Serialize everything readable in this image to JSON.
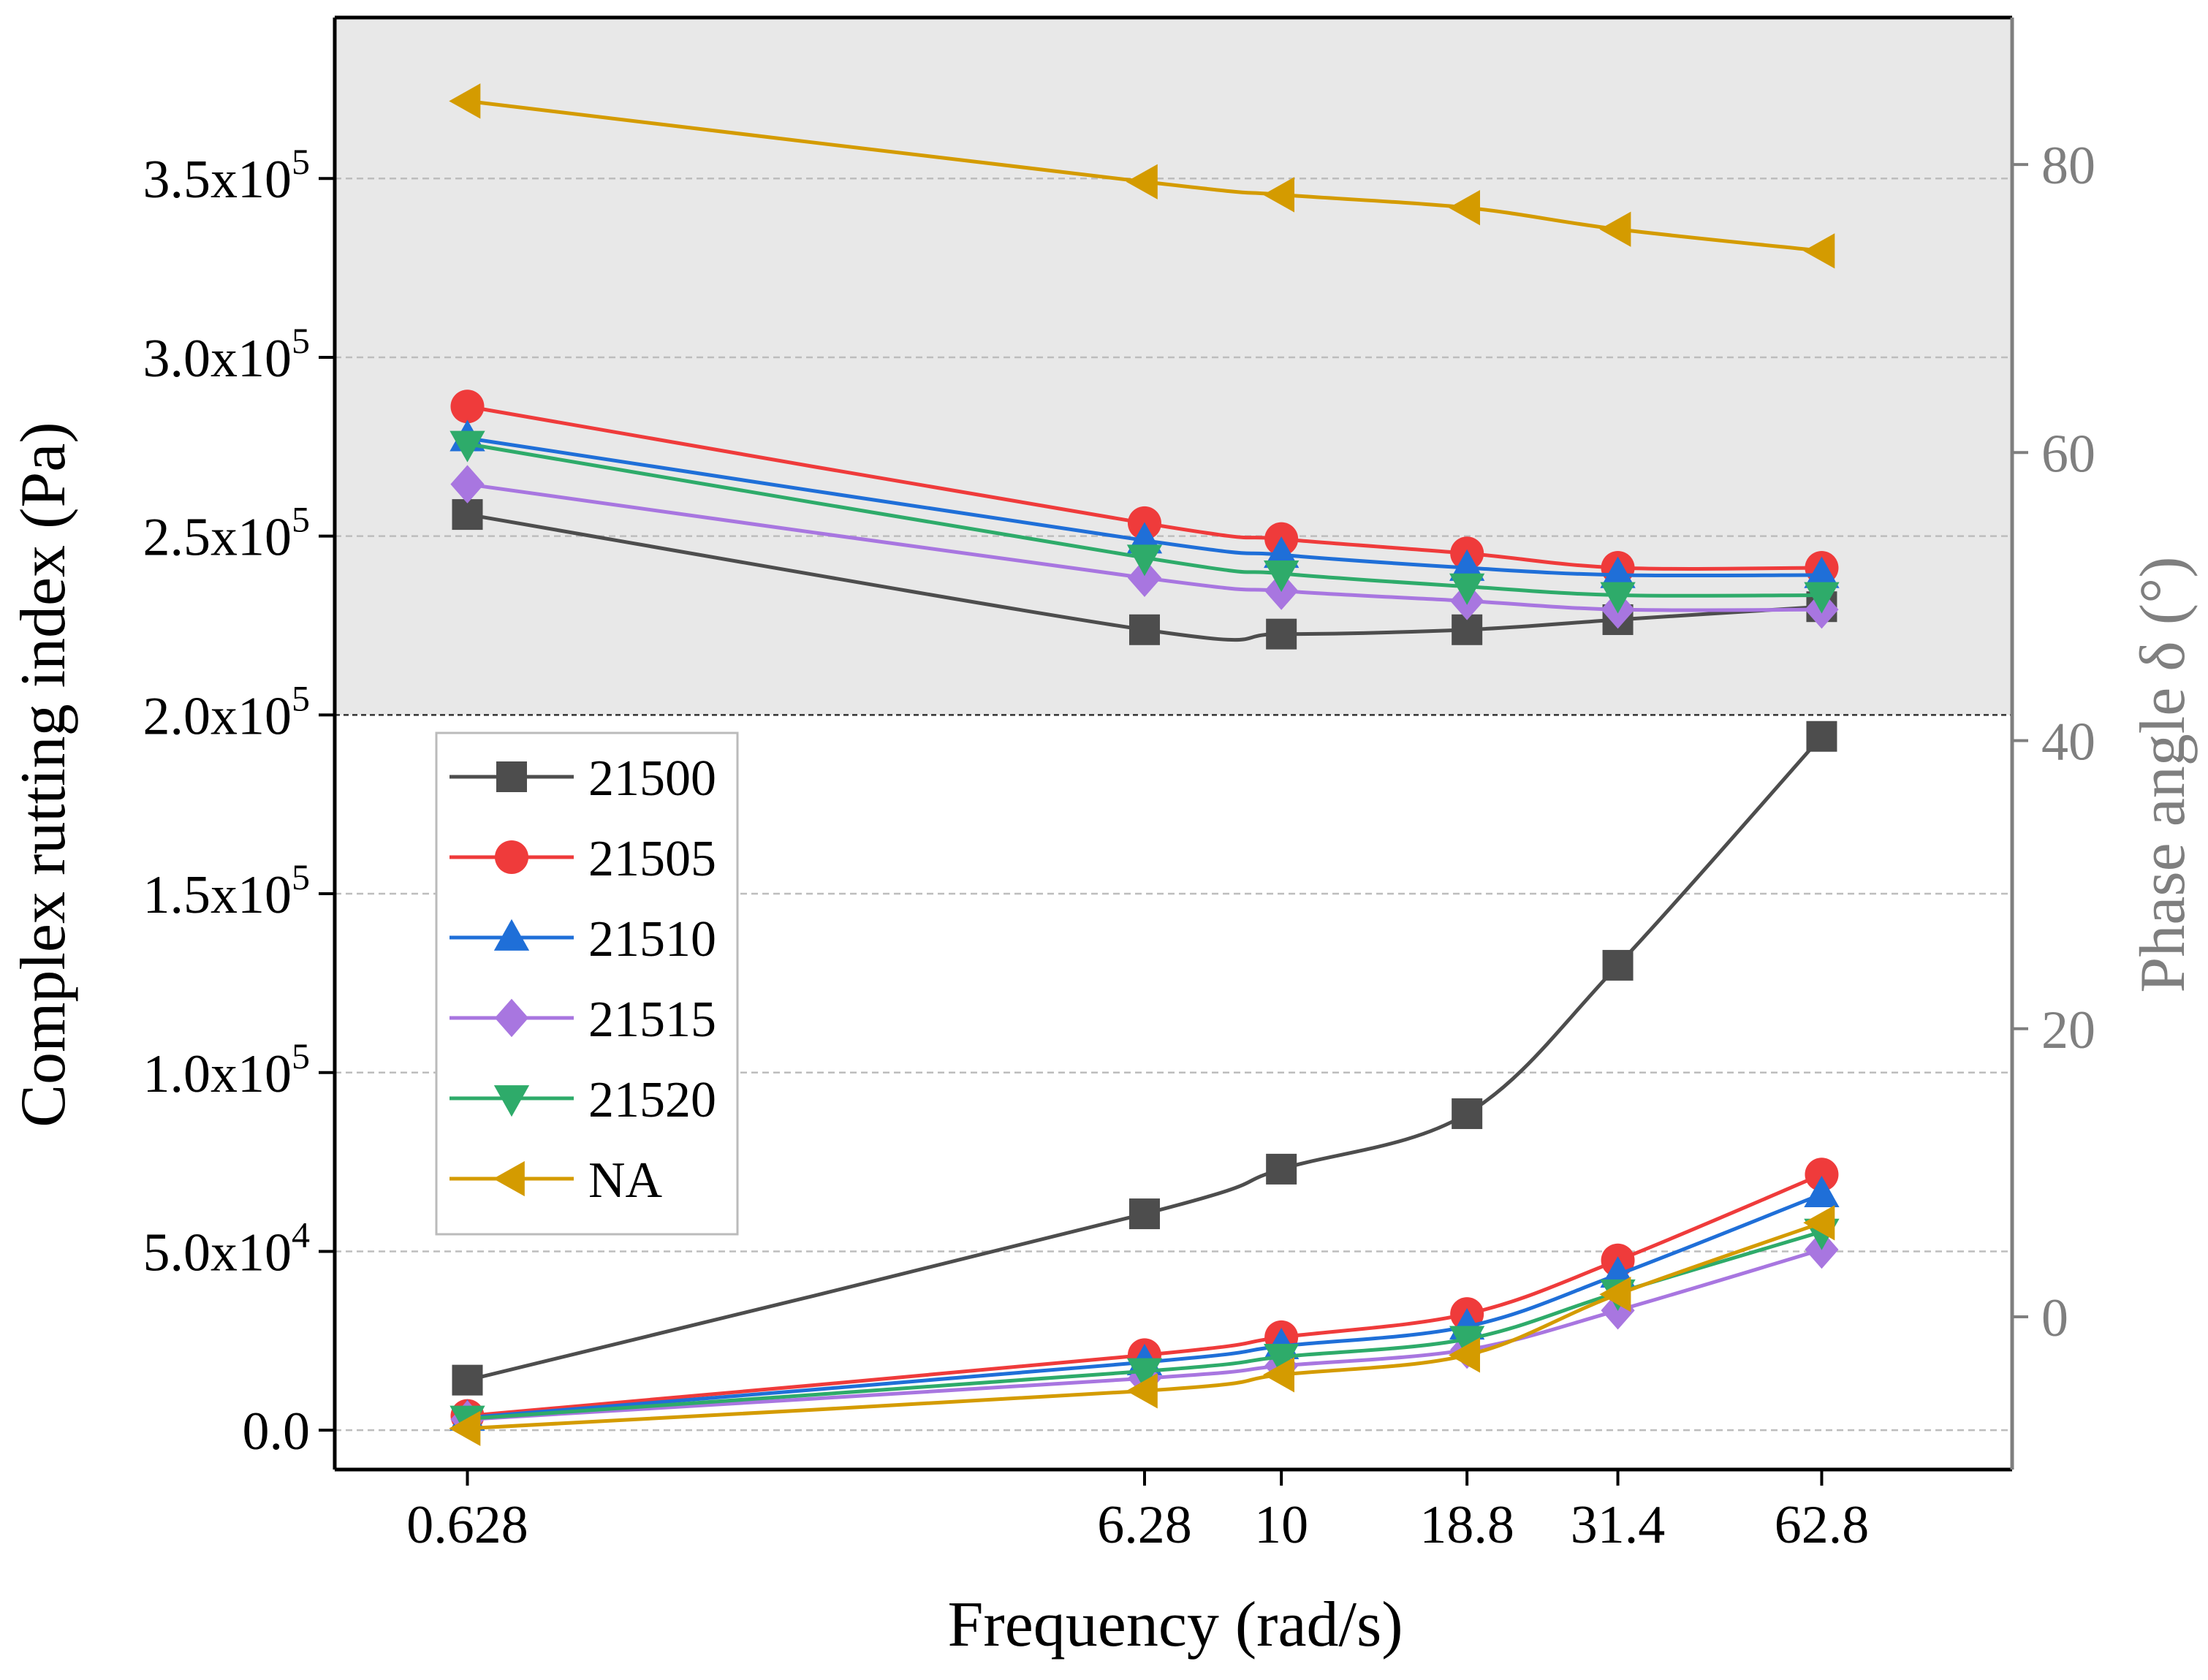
{
  "chart_data": {
    "type": "line",
    "xlabel": "Frequency (rad/s)",
    "ylabel_left": "Complex rutting index (Pa)",
    "ylabel_right": "Phase angle δ (°)",
    "x_categories": [
      "0.628",
      "6.28",
      "10",
      "18.8",
      "31.4",
      "62.8"
    ],
    "x_values": [
      0.628,
      6.28,
      10,
      18.8,
      31.4,
      62.8
    ],
    "ylim_left": [
      -11000,
      395000
    ],
    "ylim_right": [
      -10.6,
      90.2
    ],
    "left_ticks": [
      {
        "value": 0,
        "mantissa": "0.0",
        "exponent": ""
      },
      {
        "value": 50000,
        "mantissa": "5.0x10",
        "exponent": "4"
      },
      {
        "value": 100000,
        "mantissa": "1.0x10",
        "exponent": "5"
      },
      {
        "value": 150000,
        "mantissa": "1.5x10",
        "exponent": "5"
      },
      {
        "value": 200000,
        "mantissa": "2.0x10",
        "exponent": "5"
      },
      {
        "value": 250000,
        "mantissa": "2.5x10",
        "exponent": "5"
      },
      {
        "value": 300000,
        "mantissa": "3.0x10",
        "exponent": "5"
      },
      {
        "value": 350000,
        "mantissa": "3.5x10",
        "exponent": "5"
      }
    ],
    "right_ticks": [
      "0",
      "20",
      "40",
      "60",
      "80"
    ],
    "shaded_region_above": 200000,
    "legend_position": "middle-left",
    "series": [
      {
        "name": "21500",
        "color": "#4d4d4d",
        "marker": "square",
        "rutting_index": [
          14000,
          60500,
          73000,
          88500,
          130000,
          194000
        ],
        "phase_angle": [
          55.7,
          47.7,
          47.4,
          47.7,
          48.4,
          49.3
        ]
      },
      {
        "name": "21505",
        "color": "#ef3b3b",
        "marker": "circle",
        "rutting_index": [
          4000,
          21000,
          26000,
          32500,
          47500,
          71500
        ],
        "phase_angle": [
          63.2,
          55.1,
          54.0,
          53.0,
          52.0,
          52.0
        ]
      },
      {
        "name": "21510",
        "color": "#1f6fd8",
        "marker": "triangle-up",
        "rutting_index": [
          3500,
          19000,
          23500,
          29000,
          43500,
          66000
        ],
        "phase_angle": [
          61.0,
          53.9,
          52.9,
          52.0,
          51.5,
          51.5
        ]
      },
      {
        "name": "21515",
        "color": "#a876e0",
        "marker": "diamond",
        "rutting_index": [
          3000,
          14500,
          18000,
          22500,
          33500,
          50500
        ],
        "phase_angle": [
          57.8,
          51.3,
          50.4,
          49.7,
          49.1,
          49.1
        ]
      },
      {
        "name": "21520",
        "color": "#2eab6a",
        "marker": "triangle-down",
        "rutting_index": [
          3200,
          16500,
          20500,
          25500,
          38500,
          55500
        ],
        "phase_angle": [
          60.6,
          52.7,
          51.6,
          50.7,
          50.1,
          50.1
        ]
      },
      {
        "name": "NA",
        "color": "#d49b00",
        "marker": "triangle-left",
        "rutting_index": [
          500,
          11000,
          15500,
          21000,
          38000,
          58000
        ],
        "phase_angle": [
          84.4,
          78.8,
          77.9,
          77.0,
          75.5,
          74.0
        ]
      }
    ]
  }
}
